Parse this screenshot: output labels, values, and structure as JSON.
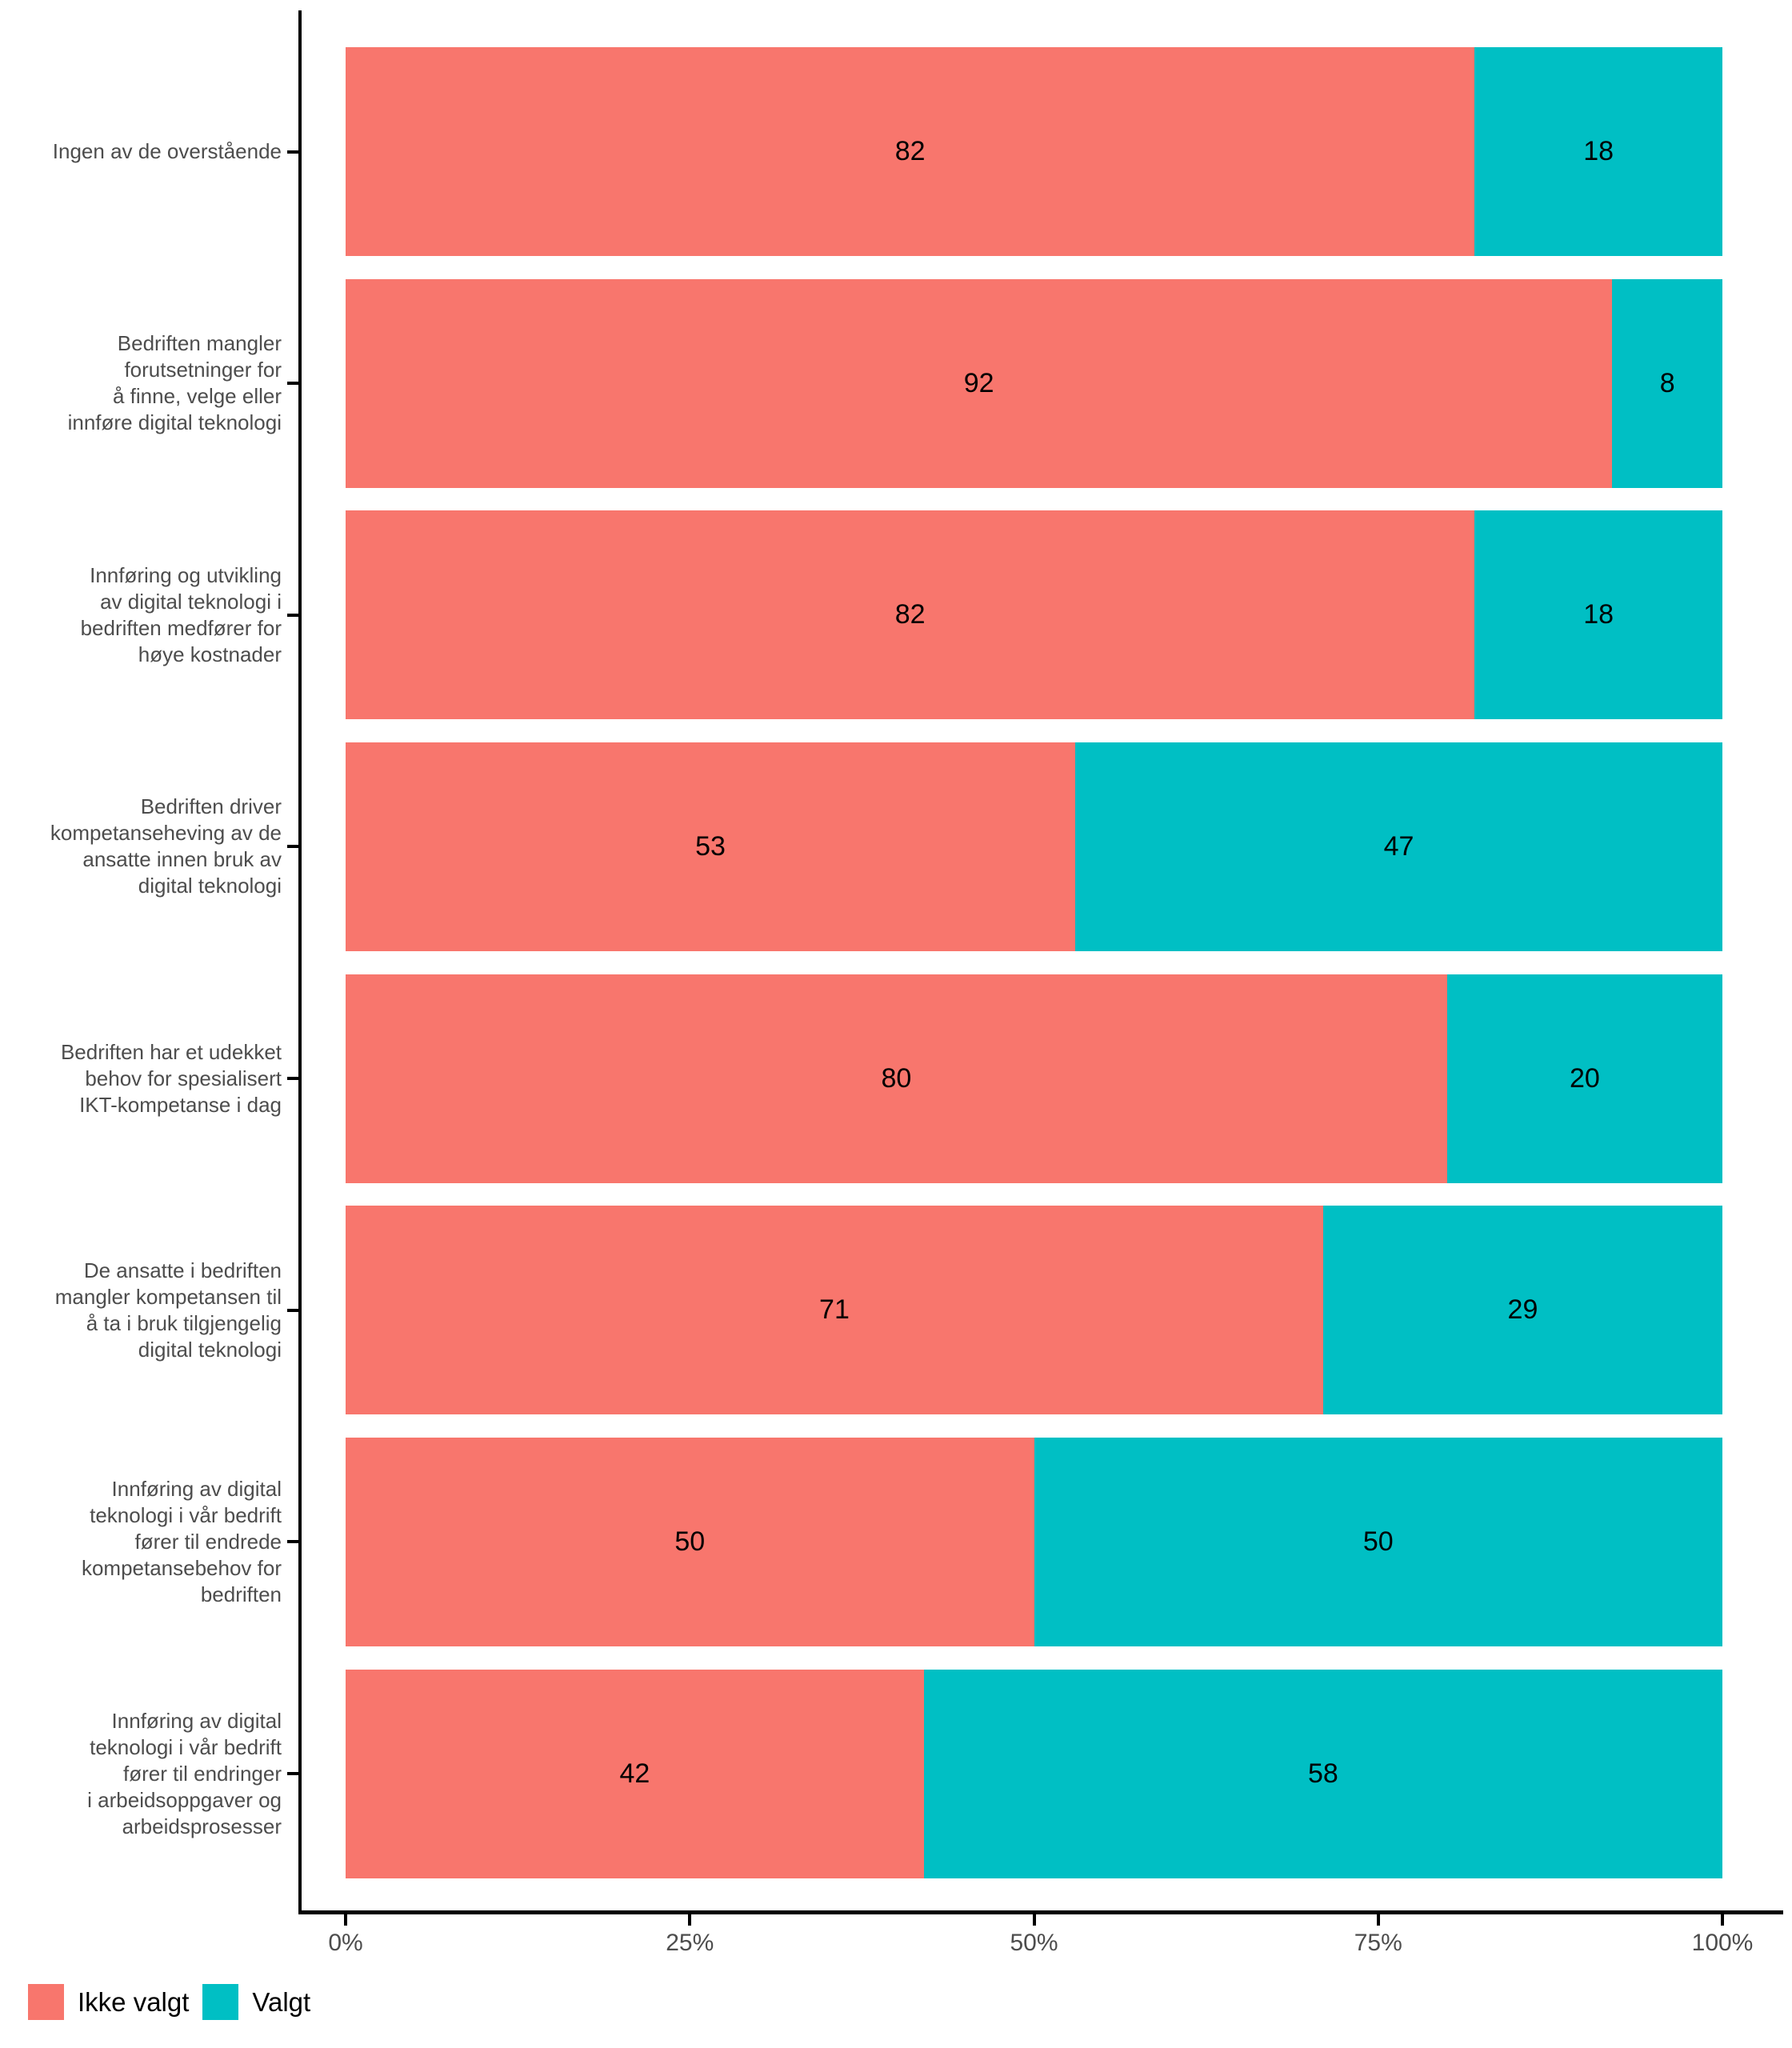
{
  "chart_data": {
    "type": "bar",
    "orientation": "horizontal",
    "stacked": true,
    "title": "",
    "xlabel": "",
    "ylabel": "",
    "xlim": [
      0,
      100
    ],
    "grid": false,
    "value_labels": true,
    "legend_position": "bottom-left",
    "categories": [
      "Ingen av de overstående",
      "Bedriften mangler\nforutsetninger for\nå finne, velge eller\ninnføre digital teknologi",
      "Innføring og utvikling\nav digital teknologi i\nbedriften medfører for\nhøye kostnader",
      "Bedriften driver\nkompetanseheving av de\nansatte innen bruk av\ndigital teknologi",
      "Bedriften har et udekket\nbehov for spesialisert\nIKT-kompetanse i dag",
      "De ansatte i bedriften\nmangler kompetansen til\nå ta i bruk tilgjengelig\ndigital teknologi",
      "Innføring av digital\nteknologi i vår bedrift\nfører til endrede\nkompetansebehov for\nbedriften",
      "Innføring av digital\nteknologi i vår bedrift\nfører til endringer\ni arbeidsoppgaver og\narbeidsprosesser"
    ],
    "series": [
      {
        "name": "Ikke valgt",
        "color": "#F8766D",
        "values": [
          82,
          92,
          82,
          53,
          80,
          71,
          50,
          42
        ]
      },
      {
        "name": "Valgt",
        "color": "#00BFC4",
        "values": [
          18,
          8,
          18,
          47,
          20,
          29,
          50,
          58
        ]
      }
    ],
    "x_ticks": [
      {
        "label": "0%",
        "value": 0
      },
      {
        "label": "25%",
        "value": 25
      },
      {
        "label": "50%",
        "value": 50
      },
      {
        "label": "75%",
        "value": 75
      },
      {
        "label": "100%",
        "value": 100
      }
    ],
    "colors": {
      "axis_text": "#4D4D4D",
      "axis_line": "#000000",
      "value_label": "#000000",
      "background": "#FFFFFF"
    }
  }
}
